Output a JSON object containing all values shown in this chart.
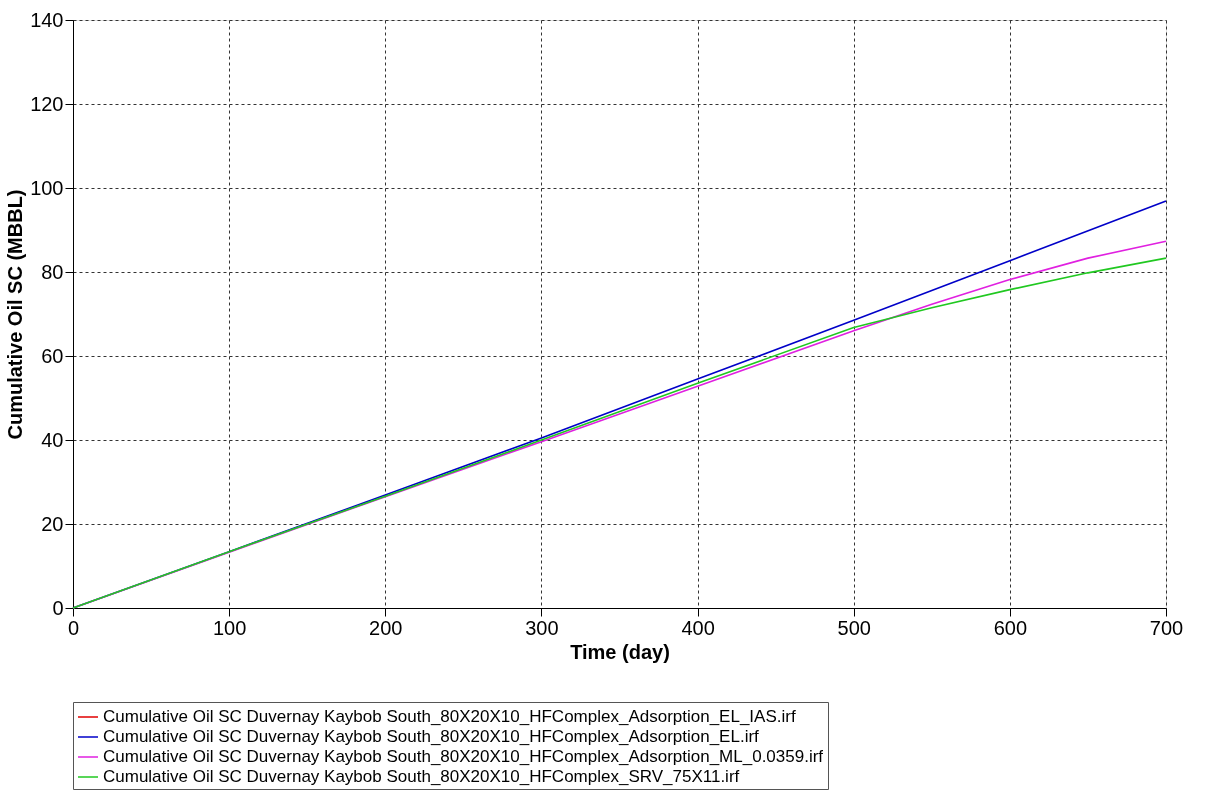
{
  "chart_data": {
    "type": "line",
    "xlabel": "Time (day)",
    "ylabel": "Cumulative Oil SC (MBBL)",
    "xlim": [
      0,
      700
    ],
    "xticks": [
      0,
      100,
      200,
      300,
      400,
      500,
      600,
      700
    ],
    "ylim": [
      0,
      140
    ],
    "yticks": [
      0,
      20,
      40,
      60,
      80,
      100,
      120,
      140
    ],
    "grid": true,
    "legend": "bottom",
    "line_style": "solid",
    "marker": "none",
    "series": [
      {
        "name": "Cumulative Oil SC Duvernay Kaybob South_80X20X10_HFComplex_Adsorption_EL_IAS.irf",
        "color": "#e00000",
        "values": [
          null,
          null,
          null,
          null,
          null,
          null,
          null,
          null
        ]
      },
      {
        "name": "Cumulative Oil SC Duvernay Kaybob South_80X20X10_HFComplex_Adsorption_EL.irf",
        "color": "#0000c8",
        "x": [
          0,
          100,
          200,
          300,
          400,
          500,
          600,
          700
        ],
        "values": [
          0,
          13.4,
          26.9,
          40.5,
          54.5,
          68.5,
          82.7,
          96.9
        ]
      },
      {
        "name": "Cumulative Oil SC Duvernay Kaybob South_80X20X10_HFComplex_Adsorption_ML_0.0359.irf",
        "color": "#e020e0",
        "x": [
          0,
          100,
          200,
          300,
          400,
          500,
          550,
          600,
          650,
          700
        ],
        "values": [
          0,
          13.3,
          26.5,
          39.6,
          52.8,
          66,
          72.3,
          78.2,
          83.3,
          87.3
        ]
      },
      {
        "name": "Cumulative Oil SC Duvernay Kaybob South_80X20X10_HFComplex_SRV_75X11.irf",
        "color": "#20c820",
        "x": [
          0,
          100,
          200,
          300,
          400,
          500,
          550,
          600,
          650,
          700
        ],
        "values": [
          0,
          13.4,
          26.6,
          40,
          53.5,
          66.8,
          71.5,
          75.8,
          79.8,
          83.3
        ]
      }
    ]
  }
}
